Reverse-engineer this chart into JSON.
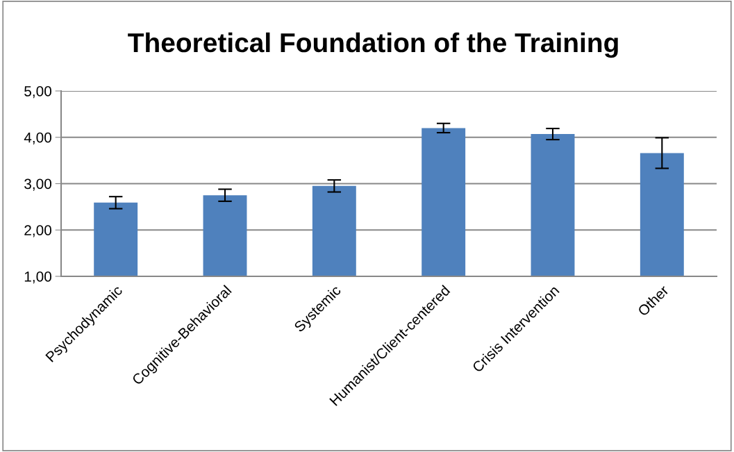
{
  "chart_data": {
    "type": "bar",
    "title": "Theoretical Foundation of the Training",
    "categories": [
      "Psychodynamic",
      "Cognitive-Behavioral",
      "Systemic",
      "Humanist/Client-centered",
      "Crisis Intervention",
      "Other"
    ],
    "values": [
      2.59,
      2.75,
      2.95,
      4.2,
      4.07,
      3.66
    ],
    "errors": [
      0.13,
      0.13,
      0.13,
      0.1,
      0.12,
      0.33
    ],
    "color": "#4f81bd",
    "ylim": [
      1,
      5
    ],
    "yticks": [
      {
        "value": 1,
        "label": "1,00"
      },
      {
        "value": 2,
        "label": "2,00"
      },
      {
        "value": 3,
        "label": "3,00"
      },
      {
        "value": 4,
        "label": "4,00"
      },
      {
        "value": 5,
        "label": "5,00"
      }
    ],
    "grid": "y",
    "legend": false
  }
}
